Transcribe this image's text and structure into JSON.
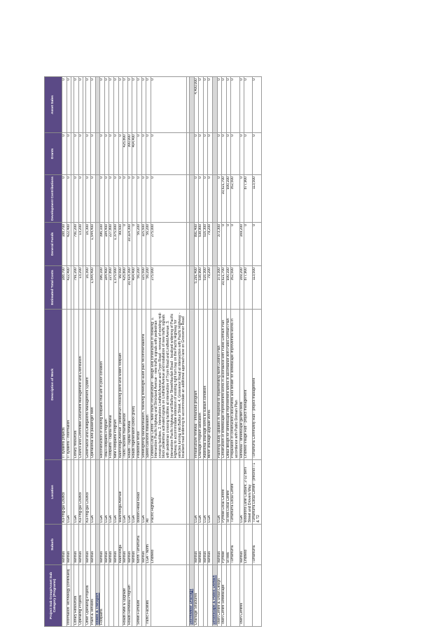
{
  "headers": [
    "Project Sub Group/Asset Sub Category (Programs)",
    "Suburb",
    "Location",
    "Description of Work",
    "Estimated Total Costs",
    "General Funds",
    "Development Contributions",
    "Grants",
    "Asset Sales"
  ],
  "rows": [
    {
      "type": "row",
      "cells": [
        "",
        "Various",
        "Ku-ring-gai Council",
        "IT systems projects",
        "188,700",
        "188,700",
        "0",
        "0",
        "0"
      ]
    },
    {
      "type": "row",
      "cells": [
        "Information Technology (continued)",
        "Various",
        "LGA",
        "IT systems - information",
        "422,400",
        "422,400",
        "0",
        "0",
        "0"
      ]
    },
    {
      "type": "blank"
    },
    {
      "type": "row",
      "cells": [
        "Library Resources",
        "Various",
        "LGA",
        "Library resources",
        "791,200",
        "791,200",
        "0",
        "0",
        "0"
      ]
    },
    {
      "type": "row",
      "cells": [
        "Operating Projects",
        "Various",
        "Ku-ring-gai Council",
        "Council and Committee Document Management and Distribution",
        "13,200",
        "13,200",
        "0",
        "0",
        "0"
      ]
    },
    {
      "type": "blank"
    },
    {
      "type": "row",
      "cells": [
        "Other Operating Projects",
        "Various",
        "Ku-ring-gai Council",
        "Governance and Delegations Management System",
        "16,300",
        "16,300",
        "0",
        "0",
        "0"
      ]
    },
    {
      "type": "row",
      "cells": [
        "Plant & Vehicles",
        "Various",
        "LGA",
        "Operational and passenger fleet",
        "1,544,400",
        "1,544,400",
        "0",
        "0",
        "0"
      ]
    },
    {
      "type": "sec",
      "cells": [
        "Roads & Transport",
        "",
        "",
        "",
        "",
        "",
        "",
        "",
        ""
      ]
    },
    {
      "type": "row",
      "cells": [
        "Footpaths",
        "Various",
        "LGA",
        "Reconstruction of existing footpaths that are in poor condition",
        "396,100",
        "396,100",
        "0",
        "0",
        "0"
      ]
    },
    {
      "type": "row",
      "cells": [
        "",
        "Various",
        "LGA",
        "Total Footpaths Program",
        "184,400",
        "184,400",
        "0",
        "0",
        "0"
      ]
    },
    {
      "type": "row",
      "cells": [
        "",
        "Various",
        "LGA",
        "Footpaths - capital renewal",
        "227,800",
        "227,800",
        "0",
        "0",
        "0"
      ]
    },
    {
      "type": "row",
      "cells": [
        "",
        "Various",
        "LGA",
        "New Footpaths Program",
        "1,375,000",
        "1,375,000",
        "0",
        "0",
        "0"
      ]
    },
    {
      "type": "row",
      "cells": [
        "",
        "Wahroonga",
        "Wahroonga Avenue",
        "Wahroonga Avenue - pedestrian crossing point and widen footpath",
        "99,500",
        "99,500",
        "0",
        "0",
        "0"
      ]
    },
    {
      "type": "row",
      "cells": [
        "Roads New & Upgrade",
        "Various",
        "LGA",
        "Traffic facilities maintenance",
        "425,800",
        "0",
        "0",
        "425,800",
        "0"
      ]
    },
    {
      "type": "row",
      "cells": [
        "Roads Renewal Program",
        "Various",
        "LGA",
        "Roads - capital renewal",
        "10,414,300",
        "10,114,300",
        "0",
        "300,000",
        "0"
      ]
    },
    {
      "type": "row",
      "cells": [
        "",
        "Various",
        "LGA",
        "Roads regeneration (block grant)",
        "404,400",
        "0",
        "0",
        "404,400",
        "0"
      ]
    },
    {
      "type": "row",
      "cells": [
        "Street Furniture",
        "North Turramurra",
        "Bobbin Head Road",
        "Pedestrian fence",
        "56,200",
        "56,200",
        "0",
        "0",
        "0"
      ]
    },
    {
      "type": "row",
      "cells": [
        "",
        "Various",
        "LGA",
        "Streetlighting standardisation, following streetlight audit plan recommendations",
        "115,500",
        "115,500",
        "0",
        "0",
        "0"
      ]
    },
    {
      "type": "row",
      "cells": [
        "Traffic Facilities",
        "LGA - North",
        "All",
        "Speed cushions installation",
        "56,200",
        "56,200",
        "0",
        "0",
        "0"
      ]
    },
    {
      "type": "row",
      "cells": [
        "",
        "Lindfield",
        "Pacific Highway",
        "Lindfield Local Centre - New traffic infrastructure - design and construction of following: 1. Intersection Pacific Highway and Strickland Avenue - new traffic signals with pedestrian crossing facilities. 2. Intersection Lindfield Avenue and Tryon Road - removal of existing mid-block pedestrian activated signals on Lindfield Avenue and installation of new traffic signals with pedestrian crossing facilities at intersection of Tryon Road and Lindfield Avenue. 3. Intersection Pacific Highway and Balfour Street/Havilah Road - localised widening of Pacific Highway to accommodate extension of existing right turn bay on the Pacific Highway for vehicles turning into Balfour Street. 4. Grosvenor Road at intersection with Pacific Highway - localised road widening to accommodate an additional approach lane on Grosvenor Road",
        "275,000",
        "275,000",
        "0",
        "0",
        "0"
      ]
    },
    {
      "type": "blank"
    },
    {
      "type": "sec",
      "cells": [
        "Stormwater Drainage",
        "",
        "",
        "",
        "",
        "",
        "",
        "",
        ""
      ]
    },
    {
      "type": "row",
      "cells": [
        "Drainage Structures",
        "Various",
        "LGA",
        "Infrastructure renewal - enhanced program",
        "5,291,400",
        "891,400",
        "0",
        "0",
        "4,400,000"
      ]
    },
    {
      "type": "row",
      "cells": [
        "",
        "Various",
        "LGA",
        "Drainage Program allocation",
        "538,900",
        "538,900",
        "0",
        "0",
        "0"
      ]
    },
    {
      "type": "row",
      "cells": [
        "",
        "Various",
        "LGA",
        "Additional drainage works to sustain condition",
        "516,300",
        "516,300",
        "0",
        "0",
        "0"
      ]
    },
    {
      "type": "row",
      "cells": [
        "",
        "Various",
        "LGA",
        "Minor drainage upgrade works",
        "79,200",
        "79,200",
        "0",
        "0",
        "0"
      ]
    },
    {
      "type": "sec",
      "cells": [
        "Streetscape & Public Domain",
        "",
        "",
        "",
        "",
        "",
        "",
        "",
        ""
      ]
    },
    {
      "type": "row",
      "cells": [
        "Town Centre & Urban Design",
        "Various",
        "LGA",
        "Planning study updates in response to implementing North District Plan",
        "373,300",
        "373,300",
        "0",
        "0",
        "0"
      ]
    },
    {
      "type": "row",
      "cells": [
        "Town Centre Streetscape",
        "Pymble",
        "Pymble Local Centre",
        "Construction of streetscape improvement works in accordance with Public Domain Plan",
        "10,621,700",
        "0",
        "10,621,700",
        "0",
        "0"
      ]
    },
    {
      "type": "row",
      "cells": [
        "",
        "St Ives",
        "St Ives Local Centre",
        "Detail design for streetscape improvement works in accordance with Public Domain Plan",
        "930,100",
        "0",
        "930,100",
        "0",
        "0"
      ]
    },
    {
      "type": "row",
      "cells": [
        "",
        "Turramurra",
        "Turramurra Local Centre",
        "Preparation of construction documents and tender for streetscape improvement works in accordance with Public Domain Plan",
        "352,500",
        "0",
        "352,500",
        "0",
        "0"
      ]
    },
    {
      "type": "row",
      "cells": [
        "Town Centres",
        "Various",
        "LGA",
        "Renewal - streetscape garden beds",
        "169,200",
        "169,200",
        "0",
        "0",
        "0"
      ]
    },
    {
      "type": "row",
      "cells": [
        "",
        "Lindfield",
        "Woodford Lane Carpark, 2-12 Beril Street and Drovers Way",
        "Lindfield Village Hub - project management",
        "877,900",
        "0",
        "877,900",
        "0",
        "0"
      ]
    },
    {
      "type": "row",
      "cells": [
        "",
        "Turramurra",
        "Turramurra Local Centre - precinct T1 & T2",
        "Turramurra Community Hub - project management",
        "113,500",
        "0",
        "113,500",
        "0",
        "0"
      ]
    }
  ],
  "colors": {
    "header_bg": "#5b4a86",
    "section_bg": "#d8d8d8",
    "section_text": "#1a2a6a"
  }
}
